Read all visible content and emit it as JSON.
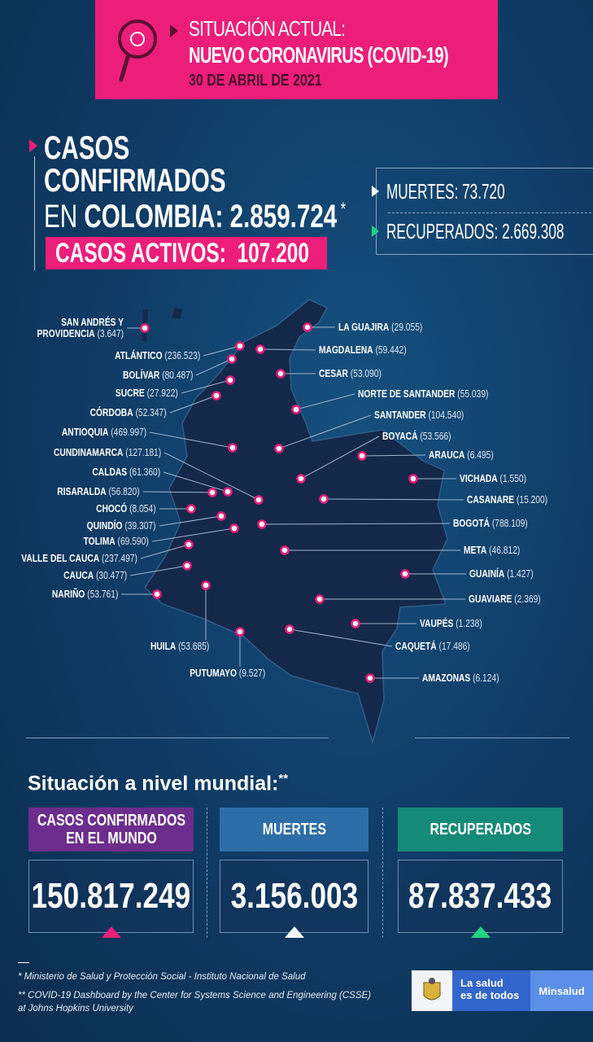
{
  "header": {
    "line1": "SITUACIÓN ACTUAL:",
    "line2": "NUEVO CORONAVIRUS (COVID-19)",
    "date": "30 DE ABRIL DE 2021",
    "icon": "magnifier-virus-icon"
  },
  "colombia": {
    "line1": "CASOS",
    "line2": "CONFIRMADOS",
    "prefix": "EN",
    "country": "COLOMBIA:",
    "total": "2.859.724",
    "asterisk": "*",
    "activos_label": "CASOS ACTIVOS:",
    "activos_value": "107.200"
  },
  "stats": {
    "muertes": "MUERTES: 73.720",
    "recuperados": "RECUPERADOS: 2.669.308"
  },
  "departments": [
    {
      "name": "SAN ANDRÉS Y PROVIDENCIA",
      "value": "(3.647)"
    },
    {
      "name": "ATLÁNTICO",
      "value": "(236.523)"
    },
    {
      "name": "BOLÍVAR",
      "value": "(80.487)"
    },
    {
      "name": "SUCRE",
      "value": "(27.922)"
    },
    {
      "name": "CÓRDOBA",
      "value": "(52.347)"
    },
    {
      "name": "ANTIOQUIA",
      "value": "(469.997)"
    },
    {
      "name": "CUNDINAMARCA",
      "value": "(127.181)"
    },
    {
      "name": "CALDAS",
      "value": "(61.360)"
    },
    {
      "name": "RISARALDA",
      "value": "(56.820)"
    },
    {
      "name": "CHOCÓ",
      "value": "(8.054)"
    },
    {
      "name": "QUINDÍO",
      "value": "(39.307)"
    },
    {
      "name": "TOLIMA",
      "value": "(69.590)"
    },
    {
      "name": "VALLE DEL CAUCA",
      "value": "(237.497)"
    },
    {
      "name": "CAUCA",
      "value": "(30.477)"
    },
    {
      "name": "NARIÑO",
      "value": "(53.761)"
    },
    {
      "name": "HUILA",
      "value": "(53.685)"
    },
    {
      "name": "PUTUMAYO",
      "value": "(9.527)"
    },
    {
      "name": "LA GUAJIRA",
      "value": "(29.055)"
    },
    {
      "name": "MAGDALENA",
      "value": "(59.442)"
    },
    {
      "name": "CESAR",
      "value": "(53.090)"
    },
    {
      "name": "NORTE DE SANTANDER",
      "value": "(55.039)"
    },
    {
      "name": "SANTANDER",
      "value": "(104.540)"
    },
    {
      "name": "BOYACÁ",
      "value": "(53.566)"
    },
    {
      "name": "ARAUCA",
      "value": "(6.495)"
    },
    {
      "name": "VICHADA",
      "value": "(1.550)"
    },
    {
      "name": "CASANARE",
      "value": "(15.200)"
    },
    {
      "name": "BOGOTÁ",
      "value": "(788.109)"
    },
    {
      "name": "META",
      "value": "(46.812)"
    },
    {
      "name": "GUAINÍA",
      "value": "(1.427)"
    },
    {
      "name": "GUAVIARE",
      "value": "(2.369)"
    },
    {
      "name": "VAUPÉS",
      "value": "(1.238)"
    },
    {
      "name": "CAQUETÁ",
      "value": "(17.486)"
    },
    {
      "name": "AMAZONAS",
      "value": "(6.124)"
    }
  ],
  "world": {
    "title": "Situación a nivel mundial:",
    "asterisk": "**",
    "columns": [
      {
        "label": "CASOS CONFIRMADOS EN EL MUNDO",
        "value": "150.817.249",
        "color": "#6c2d8c",
        "arrow": "#ec1e79"
      },
      {
        "label": "MUERTES",
        "value": "3.156.003",
        "color": "#2d6ea8",
        "arrow": "#ffffff"
      },
      {
        "label": "RECUPERADOS",
        "value": "87.837.433",
        "color": "#168a78",
        "arrow": "#22d37f"
      }
    ]
  },
  "footer": {
    "note1": "* Ministerio de Salud y Protección Social - Instituto Nacional de Salud",
    "note2": "** COVID-19 Dashboard by the Center for Systems Science and Engineering (CSSE)",
    "note3": "at Johns Hopkins University",
    "logo_slogan_1": "La salud",
    "logo_slogan_2": "es de todos",
    "logo_brand": "Minsalud"
  },
  "colors": {
    "pink": "#ec1e79",
    "background": "#0f3a63",
    "map": "#14284a",
    "green": "#22d37f"
  }
}
